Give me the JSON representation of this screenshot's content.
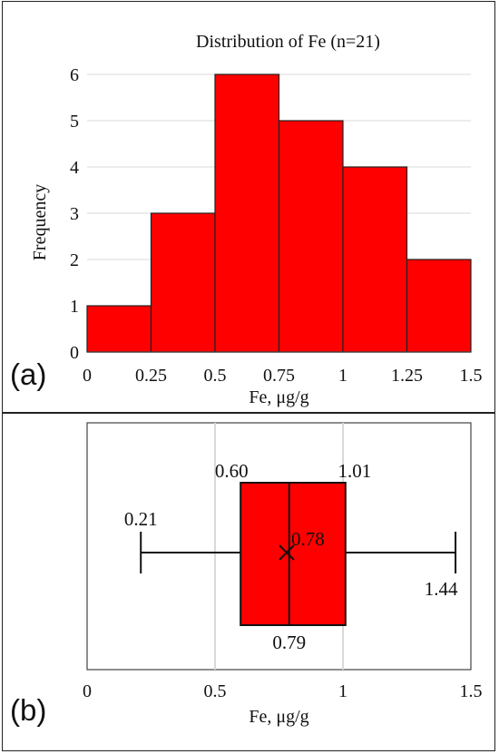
{
  "chart_data": [
    {
      "type": "bar",
      "panel_label": "(a)",
      "title": "Distribution of Fe (n=21)",
      "xlabel": "Fe, μg/g",
      "ylabel": "Frequency",
      "bin_edges": [
        0,
        0.25,
        0.5,
        0.75,
        1,
        1.25,
        1.5
      ],
      "x_tick_labels": [
        "0",
        "0.25",
        "0.5",
        "0.75",
        "1",
        "1.25",
        "1.5"
      ],
      "y_tick_labels": [
        "0",
        "1",
        "2",
        "3",
        "4",
        "5",
        "6"
      ],
      "values": [
        1,
        3,
        6,
        5,
        4,
        2
      ],
      "ylim": [
        0,
        6
      ],
      "xlim": [
        0,
        1.5
      ],
      "grid": "horizontal",
      "bar_color": "#ff0000"
    },
    {
      "type": "box",
      "panel_label": "(b)",
      "xlabel": "Fe, μg/g",
      "x_tick_values": [
        0,
        0.5,
        1,
        1.5
      ],
      "x_tick_labels": [
        "0",
        "0.5",
        "1",
        "1.5"
      ],
      "xlim": [
        0,
        1.5
      ],
      "grid": "vertical",
      "min": 0.21,
      "q1": 0.6,
      "median": 0.79,
      "mean": 0.78,
      "q3": 1.01,
      "max": 1.44,
      "labels": {
        "min": "0.21",
        "q1": "0.60",
        "median": "0.79",
        "mean": "0.78",
        "q3": "1.01",
        "max": "1.44"
      },
      "box_color": "#ff0000"
    }
  ]
}
